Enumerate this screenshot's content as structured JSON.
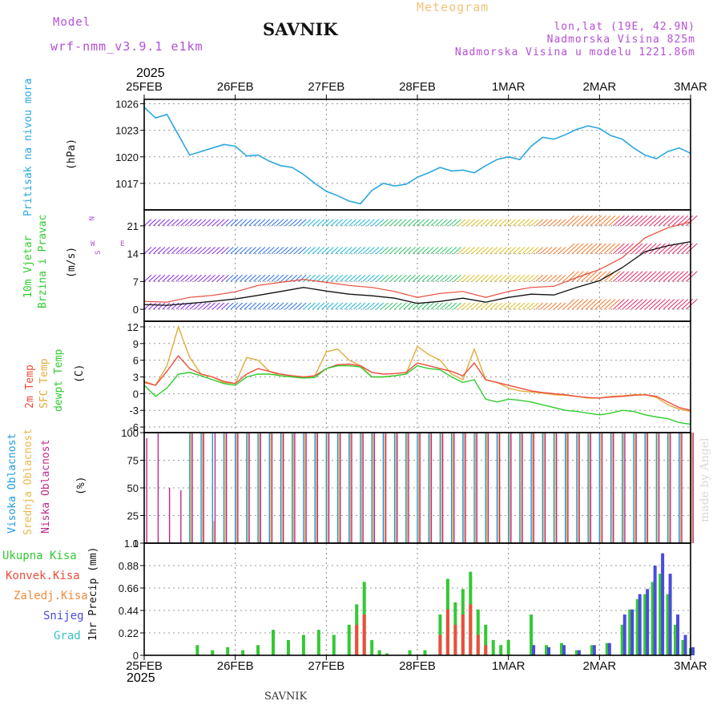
{
  "header": {
    "model_label": "Model",
    "model_name": "wrf-nmm_v3.9.1 e1km",
    "station": "SAVNIK",
    "product": "Meteogram",
    "coords": "lon,lat (19E, 42.9N)",
    "elevation": "Nadmorska Visina 825m",
    "model_elevation": "Nadmorska Visina u modelu 1221.86m",
    "year_top": "2025",
    "year_bottom": "2025",
    "footer_station": "SAVNIK",
    "signature": "made by Angel"
  },
  "colors": {
    "pressure": "#2aa7e0",
    "temp2m": "#ee4c3c",
    "sfc": "#e2ab3b",
    "dewpt": "#2ecc2e",
    "high_cloud": "#1e9be0",
    "mid_cloud": "#e8b84a",
    "low_cloud": "#c0298a",
    "precip_total": "#33c933",
    "precip_conv": "#ee4c3c",
    "precip_frozen": "#f08a3a",
    "precip_snow": "#4b4bdc",
    "precip_grad": "#35c3c3",
    "wind_black": "#111111",
    "wind_gust": "#e84a3a"
  },
  "dates": [
    "25FEB",
    "26FEB",
    "27FEB",
    "28FEB",
    "1MAR",
    "2MAR",
    "3MAR"
  ],
  "panels": {
    "pressure": {
      "ylabel": "Pritisak na nivou mora",
      "unit": "(hPa)",
      "ticks": [
        "1026",
        "1023",
        "1020",
        "1017"
      ]
    },
    "wind": {
      "ylabel1": "10m Vjetar",
      "ylabel2": "Brzina i Pravac",
      "unit": "(m/s)",
      "compass_n": "N",
      "compass_w": "W",
      "compass_e": "E",
      "compass_s": "S",
      "ticks": [
        "21",
        "14",
        "7",
        "0"
      ]
    },
    "temp": {
      "ylabel1": "2m Temp",
      "ylabel2": "SFC Temp",
      "ylabel3": "dewpt Temp",
      "unit": "(C)",
      "ticks": [
        "12",
        "9",
        "6",
        "3",
        "0",
        "-3",
        "-6"
      ]
    },
    "cloud": {
      "ylabel1": "Visoka Oblacnost",
      "ylabel2": "Srednja Oblacnost",
      "ylabel3": "Niska Oblacnost",
      "unit": "(%)",
      "ticks": [
        "100",
        "75",
        "50",
        "25",
        "0"
      ]
    },
    "precip": {
      "legend": [
        "Ukupna Kisa",
        "Konvek.Kisa",
        "Zaledj.Kisa",
        "Snijeg",
        "Grad"
      ],
      "ylabel": "1hr Precip (mm)",
      "ticks": [
        "1.1",
        "0.88",
        "0.66",
        "0.44",
        "0.22",
        "0"
      ]
    }
  },
  "chart_data": [
    {
      "type": "line",
      "title": "",
      "ylabel": "Pritisak na nivou mora (hPa)",
      "ylim": [
        1014,
        1026.5
      ],
      "x_hours": [
        0,
        3,
        6,
        9,
        12,
        15,
        18,
        21,
        24,
        27,
        30,
        33,
        36,
        39,
        42,
        45,
        48,
        51,
        54,
        57,
        60,
        63,
        66,
        69,
        72,
        75,
        78,
        81,
        84,
        87,
        90,
        93,
        96,
        99,
        102,
        105,
        108,
        111,
        114,
        117,
        120,
        123,
        126,
        129,
        132,
        135,
        138,
        141,
        144
      ],
      "series": [
        {
          "values": [
            1025.6,
            1024.4,
            1024.8,
            1022.5,
            1020.2,
            1020.6,
            1021.0,
            1021.4,
            1021.2,
            1020.1,
            1020.2,
            1019.5,
            1019.0,
            1018.8,
            1018.0,
            1017.0,
            1016.1,
            1015.6,
            1015.0,
            1014.7,
            1016.2,
            1017.0,
            1016.7,
            1016.9,
            1017.7,
            1018.2,
            1018.8,
            1018.4,
            1018.5,
            1018.2,
            1019.0,
            1019.7,
            1020.0,
            1019.7,
            1021.2,
            1022.2,
            1022.0,
            1022.5,
            1023.1,
            1023.5,
            1023.2,
            1022.4,
            1022.0,
            1021.0,
            1020.2,
            1019.8,
            1020.6,
            1021.0,
            1020.4
          ]
        }
      ]
    },
    {
      "type": "line",
      "title": "",
      "ylabel": "10m Vjetar Brzina i Pravac (m/s)",
      "ylim": [
        -3,
        25
      ],
      "x_hours": [
        0,
        6,
        12,
        18,
        24,
        30,
        36,
        42,
        48,
        54,
        60,
        66,
        72,
        78,
        84,
        90,
        96,
        102,
        108,
        114,
        120,
        126,
        132,
        138,
        144
      ],
      "series": [
        {
          "values": [
            1.2,
            1.0,
            1.5,
            2.0,
            2.6,
            3.5,
            4.5,
            5.5,
            4.6,
            3.8,
            3.4,
            2.8,
            1.5,
            2.0,
            2.8,
            1.8,
            3.0,
            3.8,
            3.6,
            5.5,
            7.2,
            10.5,
            14.5,
            16.0,
            17.0
          ]
        },
        {
          "values": [
            2.0,
            1.8,
            3.0,
            3.5,
            4.4,
            6.0,
            6.8,
            7.5,
            6.8,
            6.0,
            5.5,
            4.5,
            3.0,
            4.0,
            4.5,
            3.0,
            4.5,
            5.5,
            5.8,
            8.0,
            10.0,
            13.0,
            18.0,
            20.5,
            22.0
          ]
        }
      ]
    },
    {
      "type": "line",
      "title": "",
      "ylabel": "Temp (C)",
      "ylim": [
        -7,
        13
      ],
      "x_hours": [
        0,
        3,
        6,
        9,
        12,
        15,
        18,
        21,
        24,
        27,
        30,
        33,
        36,
        39,
        42,
        45,
        48,
        51,
        54,
        57,
        60,
        63,
        66,
        69,
        72,
        75,
        78,
        81,
        84,
        87,
        90,
        93,
        96,
        99,
        102,
        105,
        108,
        111,
        114,
        117,
        120,
        123,
        126,
        129,
        132,
        135,
        138,
        141,
        144
      ],
      "series": [
        {
          "name": "2m Temp",
          "values": [
            2.0,
            1.5,
            4.0,
            6.8,
            4.5,
            3.5,
            3.0,
            2.2,
            1.8,
            3.5,
            4.5,
            4.0,
            3.5,
            3.2,
            3.0,
            3.2,
            4.5,
            5.2,
            5.3,
            5.0,
            3.8,
            3.5,
            3.6,
            3.8,
            5.5,
            5.0,
            4.5,
            4.0,
            3.2,
            5.5,
            2.5,
            2.0,
            1.5,
            1.0,
            0.5,
            0.2,
            0.0,
            -0.2,
            -0.5,
            -0.7,
            -0.8,
            -0.6,
            -0.5,
            -0.3,
            -0.2,
            -0.5,
            -1.5,
            -2.5,
            -3.0
          ]
        },
        {
          "name": "SFC Temp",
          "values": [
            2.2,
            1.5,
            5.0,
            12.0,
            6.5,
            3.5,
            3.0,
            2.0,
            1.8,
            6.5,
            6.0,
            4.0,
            3.2,
            3.0,
            2.8,
            3.2,
            7.5,
            8.0,
            6.0,
            5.0,
            3.0,
            3.0,
            3.2,
            3.5,
            8.5,
            7.0,
            6.0,
            3.5,
            2.5,
            8.0,
            2.5,
            2.0,
            1.0,
            0.5,
            0.3,
            0.1,
            -0.2,
            -0.3,
            -0.5,
            -0.8,
            -0.8,
            -0.5,
            -0.4,
            -0.2,
            -0.2,
            -0.7,
            -2.0,
            -2.8,
            -3.2
          ]
        },
        {
          "name": "dewpt Temp",
          "values": [
            1.5,
            -0.5,
            1.0,
            3.5,
            3.8,
            3.2,
            2.5,
            1.8,
            1.5,
            3.0,
            3.5,
            3.5,
            3.2,
            3.0,
            2.8,
            2.9,
            4.5,
            5.0,
            5.0,
            4.8,
            3.0,
            3.0,
            3.2,
            3.5,
            5.0,
            4.5,
            4.3,
            3.0,
            2.0,
            2.5,
            -1.0,
            -1.5,
            -1.0,
            -1.2,
            -1.5,
            -2.0,
            -2.5,
            -3.0,
            -3.2,
            -3.5,
            -3.8,
            -3.5,
            -3.0,
            -3.2,
            -3.8,
            -4.2,
            -4.5,
            -5.2,
            -5.5
          ]
        }
      ]
    },
    {
      "type": "bar",
      "title": "",
      "ylabel": "Oblacnost (%)",
      "ylim": [
        0,
        100
      ],
      "x_hours": [
        0,
        3,
        6,
        9,
        12,
        15,
        18,
        21,
        24,
        27,
        30,
        33,
        36,
        39,
        42,
        45,
        48,
        51,
        54,
        57,
        60,
        63,
        66,
        69,
        72,
        75,
        78,
        81,
        84,
        87,
        90,
        93,
        96,
        99,
        102,
        105,
        108,
        111,
        114,
        117,
        120,
        123,
        126,
        129,
        132,
        135,
        138,
        141,
        144
      ],
      "series": [
        {
          "name": "Visoka Oblacnost",
          "values": [
            0,
            0,
            0,
            0,
            100,
            100,
            100,
            100,
            100,
            100,
            100,
            100,
            100,
            100,
            100,
            100,
            100,
            100,
            100,
            100,
            100,
            100,
            100,
            100,
            100,
            100,
            100,
            100,
            100,
            100,
            100,
            100,
            100,
            100,
            100,
            100,
            100,
            100,
            100,
            100,
            100,
            100,
            100,
            100,
            100,
            100,
            100,
            100,
            100
          ]
        },
        {
          "name": "Srednja Oblacnost",
          "values": [
            0,
            0,
            0,
            0,
            100,
            100,
            20,
            100,
            100,
            100,
            100,
            100,
            100,
            100,
            100,
            100,
            100,
            100,
            100,
            100,
            100,
            100,
            100,
            100,
            100,
            100,
            100,
            100,
            100,
            100,
            100,
            100,
            100,
            100,
            100,
            100,
            100,
            100,
            100,
            100,
            100,
            100,
            100,
            100,
            100,
            100,
            100,
            100,
            100
          ]
        },
        {
          "name": "Niska Oblacnost",
          "values": [
            95,
            100,
            50,
            48,
            100,
            100,
            100,
            100,
            100,
            100,
            100,
            100,
            100,
            100,
            100,
            100,
            100,
            100,
            100,
            100,
            100,
            100,
            100,
            100,
            100,
            100,
            100,
            100,
            100,
            100,
            100,
            100,
            100,
            100,
            100,
            100,
            100,
            100,
            100,
            100,
            100,
            100,
            100,
            100,
            100,
            100,
            100,
            100,
            100
          ]
        }
      ]
    },
    {
      "type": "bar",
      "title": "",
      "ylabel": "1hr Precip (mm)",
      "ylim": [
        0,
        1.1
      ],
      "x_hours": [
        14,
        18,
        22,
        26,
        30,
        34,
        38,
        42,
        46,
        50,
        54,
        56,
        58,
        60,
        62,
        64,
        70,
        74,
        78,
        80,
        82,
        84,
        86,
        88,
        90,
        92,
        94,
        96,
        102,
        106,
        110,
        114,
        118,
        122,
        126,
        128,
        130,
        132,
        134,
        136,
        138,
        140,
        142,
        144
      ],
      "series": [
        {
          "name": "Ukupna Kisa",
          "values": [
            0.1,
            0.05,
            0.08,
            0.05,
            0.1,
            0.25,
            0.15,
            0.2,
            0.25,
            0.2,
            0.3,
            0.5,
            0.72,
            0.15,
            0.05,
            0.02,
            0.05,
            0.05,
            0.4,
            0.75,
            0.52,
            0.65,
            0.82,
            0.45,
            0.3,
            0.15,
            0.1,
            0.15,
            0.4,
            0.1,
            0.12,
            0.05,
            0.1,
            0.12,
            0.3,
            0.45,
            0.55,
            0.6,
            0.72,
            0.8,
            0.6,
            0.3,
            0.15,
            0.07
          ]
        },
        {
          "name": "Konvek.Kisa",
          "values": [
            0,
            0,
            0,
            0,
            0,
            0,
            0,
            0,
            0,
            0,
            0,
            0.3,
            0.4,
            0,
            0,
            0,
            0,
            0,
            0.2,
            0.45,
            0.3,
            0.4,
            0.5,
            0.2,
            0.1,
            0,
            0,
            0,
            0,
            0,
            0,
            0,
            0,
            0,
            0,
            0,
            0,
            0,
            0,
            0,
            0,
            0,
            0,
            0
          ]
        },
        {
          "name": "Snijeg",
          "values": [
            0,
            0,
            0,
            0,
            0,
            0,
            0,
            0,
            0,
            0,
            0,
            0,
            0,
            0,
            0,
            0,
            0,
            0,
            0,
            0,
            0,
            0,
            0,
            0,
            0,
            0,
            0,
            0,
            0.1,
            0.08,
            0.1,
            0.05,
            0.1,
            0.12,
            0.4,
            0.45,
            0.6,
            0.65,
            0.88,
            1.0,
            0.8,
            0.4,
            0.2,
            0.08
          ]
        }
      ]
    }
  ]
}
